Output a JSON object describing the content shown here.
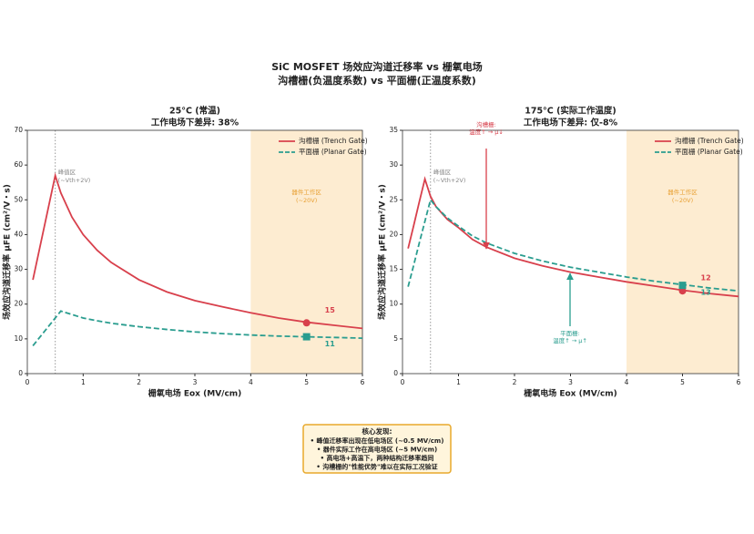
{
  "header": {
    "title": "SiC MOSFET 场效应沟道迁移率 vs 栅氧电场",
    "subtitle": "沟槽栅(负温度系数) vs 平面栅(正温度系数)"
  },
  "chart_data": [
    {
      "type": "line",
      "title": "25°C (常温)",
      "subtitle": "工作电场下差异: 38%",
      "xlabel": "栅氧电场 Eox (MV/cm)",
      "ylabel": "场效应沟道迁移率 μFE (cm²/V・s)",
      "x": [
        0.1,
        0.2,
        0.3,
        0.4,
        0.5,
        0.6,
        0.8,
        1,
        1.25,
        1.5,
        2,
        2.5,
        3,
        3.5,
        4,
        4.5,
        5,
        5.5,
        6
      ],
      "series": [
        {
          "name": "沟槽栅 (Trench Gate)",
          "color": "#d8404c",
          "linestyle": "solid",
          "marker_shape": "circle",
          "values": [
            27,
            34.5,
            42,
            49.5,
            57,
            52,
            45,
            40,
            35.5,
            32,
            27,
            23.5,
            21,
            19.2,
            17.5,
            16,
            14.8,
            13.9,
            13
          ],
          "marker_x": 5,
          "marker_value": 14.6,
          "marker_label": "15"
        },
        {
          "name": "平面栅 (Planar Gate)",
          "color": "#2a9d8f",
          "linestyle": "dashed",
          "marker_shape": "square",
          "values": [
            8,
            10,
            12,
            14,
            16,
            18,
            17,
            16,
            15.2,
            14.5,
            13.5,
            12.7,
            12,
            11.5,
            11.1,
            10.8,
            10.6,
            10.4,
            10.2
          ],
          "marker_x": 5,
          "marker_value": 10.6,
          "marker_label": "11"
        }
      ],
      "xlim": [
        0,
        6
      ],
      "xticks": [
        0,
        1,
        2,
        3,
        4,
        5,
        6
      ],
      "ylim": [
        0,
        70
      ],
      "yticks": [
        0,
        10,
        20,
        30,
        40,
        50,
        60,
        70
      ],
      "legend": "upper right",
      "vline": 0.5,
      "peak_note": [
        "峰值区",
        "(~Vth+2V)"
      ],
      "span": [
        4,
        6
      ],
      "span_note": [
        "器件工作区",
        "(~20V)"
      ],
      "arrows": []
    },
    {
      "type": "line",
      "title": "175°C (实际工作温度)",
      "subtitle": "工作电场下差异: 仅-8%",
      "xlabel": "栅氧电场 Eox (MV/cm)",
      "ylabel": "场效应沟道迁移率 μFE (cm²/V・s)",
      "x": [
        0.1,
        0.2,
        0.3,
        0.4,
        0.5,
        0.6,
        0.8,
        1,
        1.25,
        1.5,
        2,
        2.5,
        3,
        3.5,
        4,
        4.5,
        5,
        5.5,
        6
      ],
      "series": [
        {
          "name": "沟槽栅 (Trench Gate)",
          "color": "#d8404c",
          "linestyle": "solid",
          "marker_shape": "circle",
          "values": [
            18,
            21.3,
            24.7,
            28,
            25.5,
            24,
            22.2,
            21,
            19.3,
            18.2,
            16.6,
            15.5,
            14.6,
            13.9,
            13.2,
            12.6,
            12,
            11.5,
            11.1
          ],
          "marker_x": 5,
          "marker_value": 11.9,
          "marker_label": "12"
        },
        {
          "name": "平面栅 (Planar Gate)",
          "color": "#2a9d8f",
          "linestyle": "dashed",
          "marker_shape": "square",
          "values": [
            12.5,
            15.6,
            18.8,
            21.9,
            25,
            24,
            22.4,
            21.2,
            19.8,
            18.8,
            17.3,
            16.2,
            15.3,
            14.6,
            13.9,
            13.3,
            12.8,
            12.3,
            11.9
          ],
          "marker_x": 5,
          "marker_value": 12.7,
          "marker_label": "13"
        }
      ],
      "xlim": [
        0,
        6
      ],
      "xticks": [
        0,
        1,
        2,
        3,
        4,
        5,
        6
      ],
      "ylim": [
        0,
        35
      ],
      "yticks": [
        0,
        5,
        10,
        15,
        20,
        25,
        30,
        35
      ],
      "legend": "upper right",
      "vline": 0.5,
      "peak_note": [
        "峰值区",
        "(~Vth+2V)"
      ],
      "span": [
        4,
        6
      ],
      "span_note": [
        "器件工作区",
        "(~20V)"
      ],
      "arrows": [
        {
          "lines": [
            "沟槽栅:",
            "温度↑ → μ↓"
          ],
          "color": "#d8404c"
        },
        {
          "lines": [
            "平面栅:",
            "温度↑ → μ↑"
          ],
          "color": "#2a9d8f"
        }
      ]
    }
  ],
  "findings": {
    "title": "核心发现:",
    "items": [
      "• 峰值迁移率出现在低电场区 (~0.5 MV/cm)",
      "• 器件实际工作在高电场区 (~5 MV/cm)",
      "• 高电场+高温下，两种结构迁移率趋同",
      "• 沟槽栅的\"性能优势\"难以在实际工况验证"
    ]
  }
}
